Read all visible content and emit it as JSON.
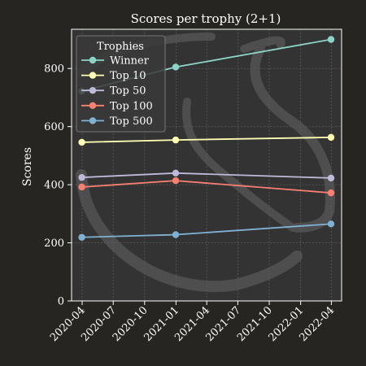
{
  "chart_data": {
    "type": "line",
    "title": "Scores per trophy (2+1)",
    "xlabel": "",
    "ylabel": "Scores",
    "x": [
      "2020-03-31",
      "2020-12-31",
      "2022-03-31"
    ],
    "x_ticks": [
      "2020-04",
      "2020-07",
      "2020-10",
      "2021-01",
      "2021-04",
      "2021-07",
      "2021-10",
      "2022-01",
      "2022-04"
    ],
    "y_ticks": [
      0,
      200,
      400,
      600,
      800
    ],
    "ylim": [
      0,
      935
    ],
    "grid": true,
    "legend_title": "Trophies",
    "legend_position": "top-left",
    "series": [
      {
        "name": "Winner",
        "color": "#8dd3c7",
        "values": [
          722,
          805,
          900
        ]
      },
      {
        "name": "Top 10",
        "color": "#ffffb3",
        "values": [
          546,
          554,
          563
        ]
      },
      {
        "name": "Top 50",
        "color": "#bebada",
        "values": [
          425,
          440,
          423
        ]
      },
      {
        "name": "Top 100",
        "color": "#fb8072",
        "values": [
          392,
          414,
          372
        ]
      },
      {
        "name": "Top 500",
        "color": "#80b1d3",
        "values": [
          219,
          228,
          265
        ]
      }
    ]
  },
  "colors": {
    "background": "#262522",
    "plot_background": "#333333",
    "grid": "#5a5a5a",
    "axis": "#ffffff"
  }
}
